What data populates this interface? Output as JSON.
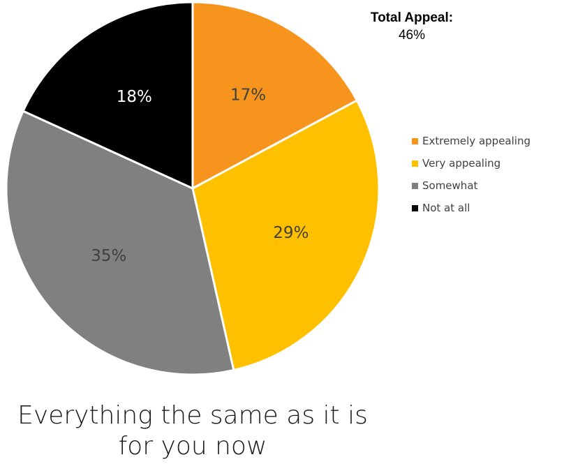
{
  "chart_data": {
    "type": "pie",
    "categories": [
      "Extremely appealing",
      "Very appealing",
      "Somewhat",
      "Not at all"
    ],
    "values": [
      17,
      29,
      35,
      18
    ],
    "slice_labels": [
      "17%",
      "29%",
      "35%",
      "18%"
    ],
    "colors": [
      "#F7941D",
      "#FFC000",
      "#808080",
      "#000000"
    ],
    "label_colors": [
      "#404040",
      "#404040",
      "#404040",
      "#ffffff"
    ],
    "legend_placement": "right",
    "caption": "Everything the same as it is for you now"
  },
  "summary": {
    "title": "Total Appeal:",
    "value": "46%"
  }
}
